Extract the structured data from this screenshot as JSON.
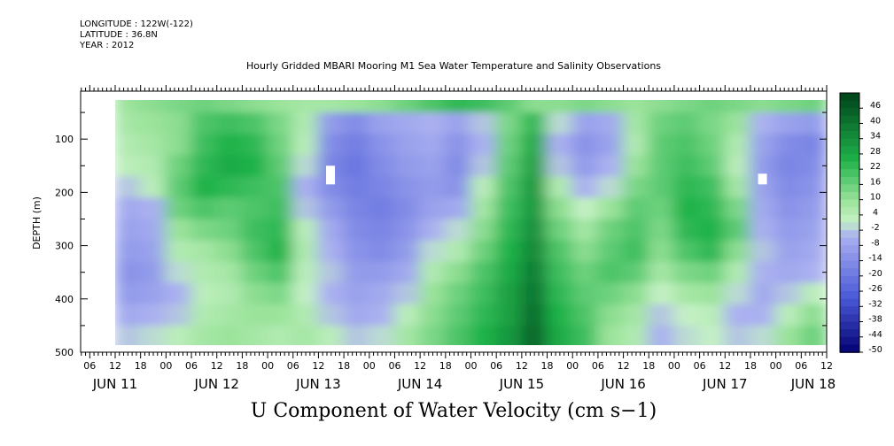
{
  "meta": {
    "longitude": "LONGITUDE : 122W(-122)",
    "latitude": "LATITUDE : 36.8N",
    "year": "YEAR : 2012"
  },
  "chart_data": {
    "type": "heatmap",
    "title": "Hourly Gridded MBARI Mooring M1 Sea Water Temperature and Salinity Observations",
    "xlabel": "U Component of Water Velocity (cm s−1)",
    "ylabel": "DEPTH (m)",
    "ylim": [
      500,
      10
    ],
    "y_reversed": true,
    "yticks": [
      100,
      200,
      300,
      400,
      500
    ],
    "x_hour_ticks": [
      "06",
      "12",
      "18",
      "00",
      "06",
      "12",
      "18",
      "00",
      "06",
      "12",
      "18",
      "00",
      "06",
      "12",
      "18",
      "00",
      "06",
      "12",
      "18",
      "00",
      "06",
      "12",
      "18",
      "00",
      "06",
      "12",
      "18",
      "00",
      "06",
      "12",
      "18",
      "00"
    ],
    "x_day_labels": [
      "JUN 11",
      "JUN 12",
      "JUN 13",
      "JUN 14",
      "JUN 15",
      "JUN 16",
      "JUN 17",
      "JUN 18"
    ],
    "colorbar": {
      "levels": [
        "46",
        "40",
        "34",
        "28",
        "22",
        "16",
        "10",
        "4",
        "-2",
        "-8",
        "-14",
        "-20",
        "-26",
        "-32",
        "-38",
        "-44",
        "-50"
      ],
      "min": -50,
      "max": 50,
      "colors": {
        "strong_positive": "#00441b",
        "mid_positive": "#1fb24a",
        "weak_positive": "#9be39b",
        "weak_negative": "#aab0f0",
        "mid_negative": "#4a5ad8",
        "strong_negative": "#08087a"
      }
    },
    "time_columns": [
      "06",
      "12",
      "18",
      "00",
      "06",
      "12",
      "18",
      "00",
      "06",
      "12",
      "18",
      "00",
      "06",
      "12",
      "18",
      "00",
      "06",
      "12",
      "18",
      "00",
      "06",
      "12",
      "18",
      "00",
      "06",
      "12",
      "18",
      "00"
    ],
    "depth_rows": [
      30,
      70,
      110,
      150,
      190,
      230,
      270,
      310,
      350,
      390,
      430,
      470
    ],
    "values": [
      [
        8,
        10,
        12,
        14,
        12,
        10,
        8,
        6,
        6,
        8,
        10,
        14,
        18,
        22,
        20,
        16,
        10,
        10,
        12,
        10,
        8,
        10,
        12,
        14,
        12,
        10,
        12,
        14
      ],
      [
        6,
        8,
        10,
        18,
        20,
        18,
        12,
        4,
        -12,
        -16,
        -10,
        -8,
        -6,
        -10,
        -4,
        12,
        22,
        -2,
        -10,
        -8,
        6,
        14,
        16,
        12,
        8,
        -6,
        -10,
        -12
      ],
      [
        4,
        6,
        10,
        20,
        24,
        22,
        14,
        2,
        -16,
        -20,
        -14,
        -10,
        -8,
        -14,
        -6,
        14,
        26,
        -6,
        -14,
        -10,
        4,
        16,
        18,
        14,
        4,
        -10,
        -16,
        -18
      ],
      [
        2,
        4,
        14,
        22,
        26,
        24,
        16,
        -2,
        -18,
        -22,
        -16,
        -12,
        -10,
        -16,
        -4,
        16,
        28,
        -4,
        -12,
        -6,
        8,
        16,
        20,
        16,
        2,
        -12,
        -18,
        -16
      ],
      [
        -4,
        2,
        16,
        24,
        22,
        20,
        18,
        -6,
        -16,
        -20,
        -18,
        -14,
        -12,
        -14,
        2,
        18,
        30,
        4,
        -6,
        -2,
        12,
        16,
        22,
        20,
        6,
        -10,
        -16,
        -14
      ],
      [
        -8,
        -6,
        14,
        18,
        16,
        18,
        20,
        -4,
        -12,
        -18,
        -20,
        -16,
        -10,
        -8,
        6,
        20,
        30,
        10,
        0,
        8,
        16,
        14,
        24,
        22,
        12,
        -8,
        -14,
        -12
      ],
      [
        -10,
        -8,
        8,
        12,
        14,
        20,
        22,
        2,
        -8,
        -16,
        -18,
        -14,
        -6,
        -2,
        10,
        22,
        32,
        14,
        6,
        14,
        18,
        12,
        22,
        24,
        16,
        -6,
        -12,
        -10
      ],
      [
        -12,
        -10,
        4,
        6,
        10,
        18,
        24,
        4,
        -6,
        -14,
        -16,
        -12,
        -2,
        4,
        14,
        24,
        34,
        18,
        10,
        16,
        20,
        10,
        18,
        22,
        10,
        -4,
        -10,
        -8
      ],
      [
        -14,
        -12,
        -2,
        4,
        6,
        14,
        18,
        2,
        -4,
        -12,
        -12,
        -8,
        4,
        10,
        18,
        26,
        36,
        20,
        14,
        18,
        16,
        6,
        12,
        14,
        4,
        -6,
        -8,
        -6
      ],
      [
        -12,
        -10,
        -6,
        2,
        4,
        10,
        12,
        0,
        -6,
        -10,
        -8,
        -4,
        8,
        14,
        20,
        28,
        38,
        22,
        16,
        14,
        10,
        0,
        6,
        8,
        -2,
        -8,
        -4,
        2
      ],
      [
        -8,
        -6,
        -4,
        4,
        6,
        8,
        8,
        4,
        -4,
        -8,
        -6,
        2,
        10,
        16,
        22,
        28,
        40,
        24,
        18,
        10,
        6,
        -4,
        0,
        2,
        -6,
        -6,
        2,
        10
      ],
      [
        -4,
        -2,
        2,
        6,
        8,
        6,
        4,
        6,
        2,
        -4,
        -2,
        6,
        12,
        18,
        24,
        30,
        42,
        26,
        20,
        8,
        4,
        -6,
        -2,
        0,
        -4,
        -2,
        8,
        14
      ]
    ],
    "missing_cells": [
      {
        "col": 8,
        "row_start": 150,
        "row_end": 185
      },
      {
        "col": 25,
        "row_start": 165,
        "row_end": 185
      }
    ]
  }
}
